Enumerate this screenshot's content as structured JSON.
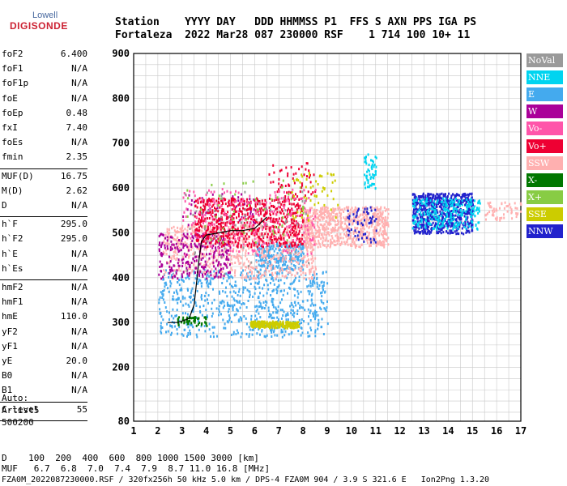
{
  "logo": {
    "line1": "Lowell",
    "line2": "DIGISONDE"
  },
  "header": {
    "row1": "Station    YYYY DAY   DDD HHMMSS P1  FFS S AXN PPS IGA PS",
    "row2": "Fortaleza  2022 Mar28 087 230000 RSF    1 714 100 10+ 11"
  },
  "params_group1": [
    {
      "label": "foF2",
      "value": "6.400"
    },
    {
      "label": "foF1",
      "value": "N/A"
    },
    {
      "label": "foF1p",
      "value": "N/A"
    },
    {
      "label": "foE",
      "value": "N/A"
    },
    {
      "label": "foEp",
      "value": "0.48"
    },
    {
      "label": "fxI",
      "value": "7.40"
    },
    {
      "label": "foEs",
      "value": "N/A"
    },
    {
      "label": "fmin",
      "value": "2.35"
    }
  ],
  "params_group2": [
    {
      "label": "MUF(D)",
      "value": "16.75"
    },
    {
      "label": "M(D)",
      "value": "2.62"
    },
    {
      "label": "D",
      "value": "N/A"
    }
  ],
  "params_group3": [
    {
      "label": "h`F",
      "value": "295.0"
    },
    {
      "label": "h`F2",
      "value": "295.0"
    },
    {
      "label": "h`E",
      "value": "N/A"
    },
    {
      "label": "h`Es",
      "value": "N/A"
    }
  ],
  "params_group4": [
    {
      "label": "hmF2",
      "value": "N/A"
    },
    {
      "label": "hmF1",
      "value": "N/A"
    },
    {
      "label": "hmE",
      "value": "110.0"
    },
    {
      "label": "yF2",
      "value": "N/A"
    },
    {
      "label": "yF1",
      "value": "N/A"
    },
    {
      "label": "yE",
      "value": "20.0"
    },
    {
      "label": "B0",
      "value": "N/A"
    },
    {
      "label": "B1",
      "value": "N/A"
    }
  ],
  "params_group5": [
    {
      "label": "C-level",
      "value": "55"
    }
  ],
  "auto_block": {
    "line1": "Auto:",
    "line2": "Artist5",
    "line3": "500200"
  },
  "footer": {
    "d_row": "D    100  200  400  600  800 1000 1500 3000 [km]",
    "muf_row": "MUF   6.7  6.8  7.0  7.4  7.9  8.7 11.0 16.8 [MHz]",
    "info_row": "FZA0M_2022087230000.RSF / 320fx256h 50 kHz 5.0 km / DPS-4 FZA0M 904 / 3.9 S 321.6 E   Ion2Png 1.3.20"
  },
  "legend": [
    {
      "label": "NoVal",
      "color": "#9a9a9a"
    },
    {
      "label": "NNE",
      "color": "#00d4f0"
    },
    {
      "label": "E",
      "color": "#44aaee"
    },
    {
      "label": "W",
      "color": "#aa0099"
    },
    {
      "label": "Vo-",
      "color": "#ff55aa"
    },
    {
      "label": "Vo+",
      "color": "#ee0033"
    },
    {
      "label": "SSW",
      "color": "#ffb0b0"
    },
    {
      "label": "X-",
      "color": "#007700"
    },
    {
      "label": "X+",
      "color": "#88cc44"
    },
    {
      "label": "SSE",
      "color": "#cccc00"
    },
    {
      "label": "NNW",
      "color": "#2222cc"
    }
  ],
  "chart_data": {
    "type": "scatter",
    "title": "",
    "xlabel": "",
    "ylabel": "",
    "xlim": [
      1,
      17
    ],
    "ylim": [
      80,
      900
    ],
    "x_ticks": [
      1,
      2,
      3,
      4,
      5,
      6,
      7,
      8,
      9,
      10,
      11,
      12,
      13,
      14,
      15,
      16,
      17
    ],
    "y_ticks": [
      80,
      200,
      300,
      400,
      500,
      600,
      700,
      800,
      900
    ],
    "grid": true,
    "legend_position": "right",
    "trace": {
      "x": [
        2.4,
        2.8,
        3.1,
        3.3,
        3.5,
        3.6,
        3.7,
        3.8,
        4.0,
        4.5,
        5.0,
        5.5,
        6.0,
        6.2,
        6.5
      ],
      "y": [
        300,
        300,
        305,
        310,
        340,
        390,
        440,
        480,
        495,
        500,
        505,
        505,
        510,
        520,
        535
      ]
    },
    "series": [
      {
        "name": "E",
        "clusters": [
          {
            "x": [
              2.0,
              9.0
            ],
            "y": [
              270,
              420
            ],
            "density": "high"
          },
          {
            "x": [
              6.0,
              8.0
            ],
            "y": [
              420,
              480
            ],
            "density": "medium"
          }
        ]
      },
      {
        "name": "SSW",
        "clusters": [
          {
            "x": [
              2.2,
              8.5
            ],
            "y": [
              400,
              520
            ],
            "density": "high"
          },
          {
            "x": [
              8.0,
              11.5
            ],
            "y": [
              470,
              560
            ],
            "density": "high"
          },
          {
            "x": [
              15.5,
              17.0
            ],
            "y": [
              530,
              570
            ],
            "density": "low"
          }
        ]
      },
      {
        "name": "W",
        "clusters": [
          {
            "x": [
              2.0,
              5.0
            ],
            "y": [
              400,
              500
            ],
            "density": "medium"
          },
          {
            "x": [
              3.0,
              6.0
            ],
            "y": [
              520,
              590
            ],
            "density": "low"
          }
        ]
      },
      {
        "name": "Vo+",
        "clusters": [
          {
            "x": [
              3.5,
              8.0
            ],
            "y": [
              470,
              580
            ],
            "density": "high"
          },
          {
            "x": [
              6.5,
              8.5
            ],
            "y": [
              580,
              660
            ],
            "density": "low"
          }
        ]
      },
      {
        "name": "Vo-",
        "clusters": [
          {
            "x": [
              3.0,
              8.5
            ],
            "y": [
              450,
              600
            ],
            "density": "medium"
          }
        ]
      },
      {
        "name": "NNW",
        "clusters": [
          {
            "x": [
              12.5,
              15.0
            ],
            "y": [
              500,
              590
            ],
            "density": "high"
          },
          {
            "x": [
              9.8,
              11.0
            ],
            "y": [
              480,
              560
            ],
            "density": "low"
          }
        ]
      },
      {
        "name": "NNE",
        "clusters": [
          {
            "x": [
              12.5,
              15.3
            ],
            "y": [
              510,
              580
            ],
            "density": "medium"
          },
          {
            "x": [
              10.5,
              11.0
            ],
            "y": [
              600,
              680
            ],
            "density": "low"
          }
        ]
      },
      {
        "name": "SSE",
        "clusters": [
          {
            "x": [
              5.8,
              7.8
            ],
            "y": [
              290,
              305
            ],
            "density": "medium"
          },
          {
            "x": [
              7.5,
              9.5
            ],
            "y": [
              530,
              640
            ],
            "density": "low"
          }
        ]
      },
      {
        "name": "X-",
        "clusters": [
          {
            "x": [
              2.8,
              4.0
            ],
            "y": [
              295,
              315
            ],
            "density": "low"
          }
        ]
      },
      {
        "name": "X+",
        "clusters": [
          {
            "x": [
              3.0,
              8.0
            ],
            "y": [
              480,
              620
            ],
            "density": "low"
          }
        ]
      },
      {
        "name": "NoVal",
        "clusters": [
          {
            "x": [
              3.0,
              8.5
            ],
            "y": [
              400,
              600
            ],
            "density": "low"
          }
        ]
      }
    ]
  }
}
